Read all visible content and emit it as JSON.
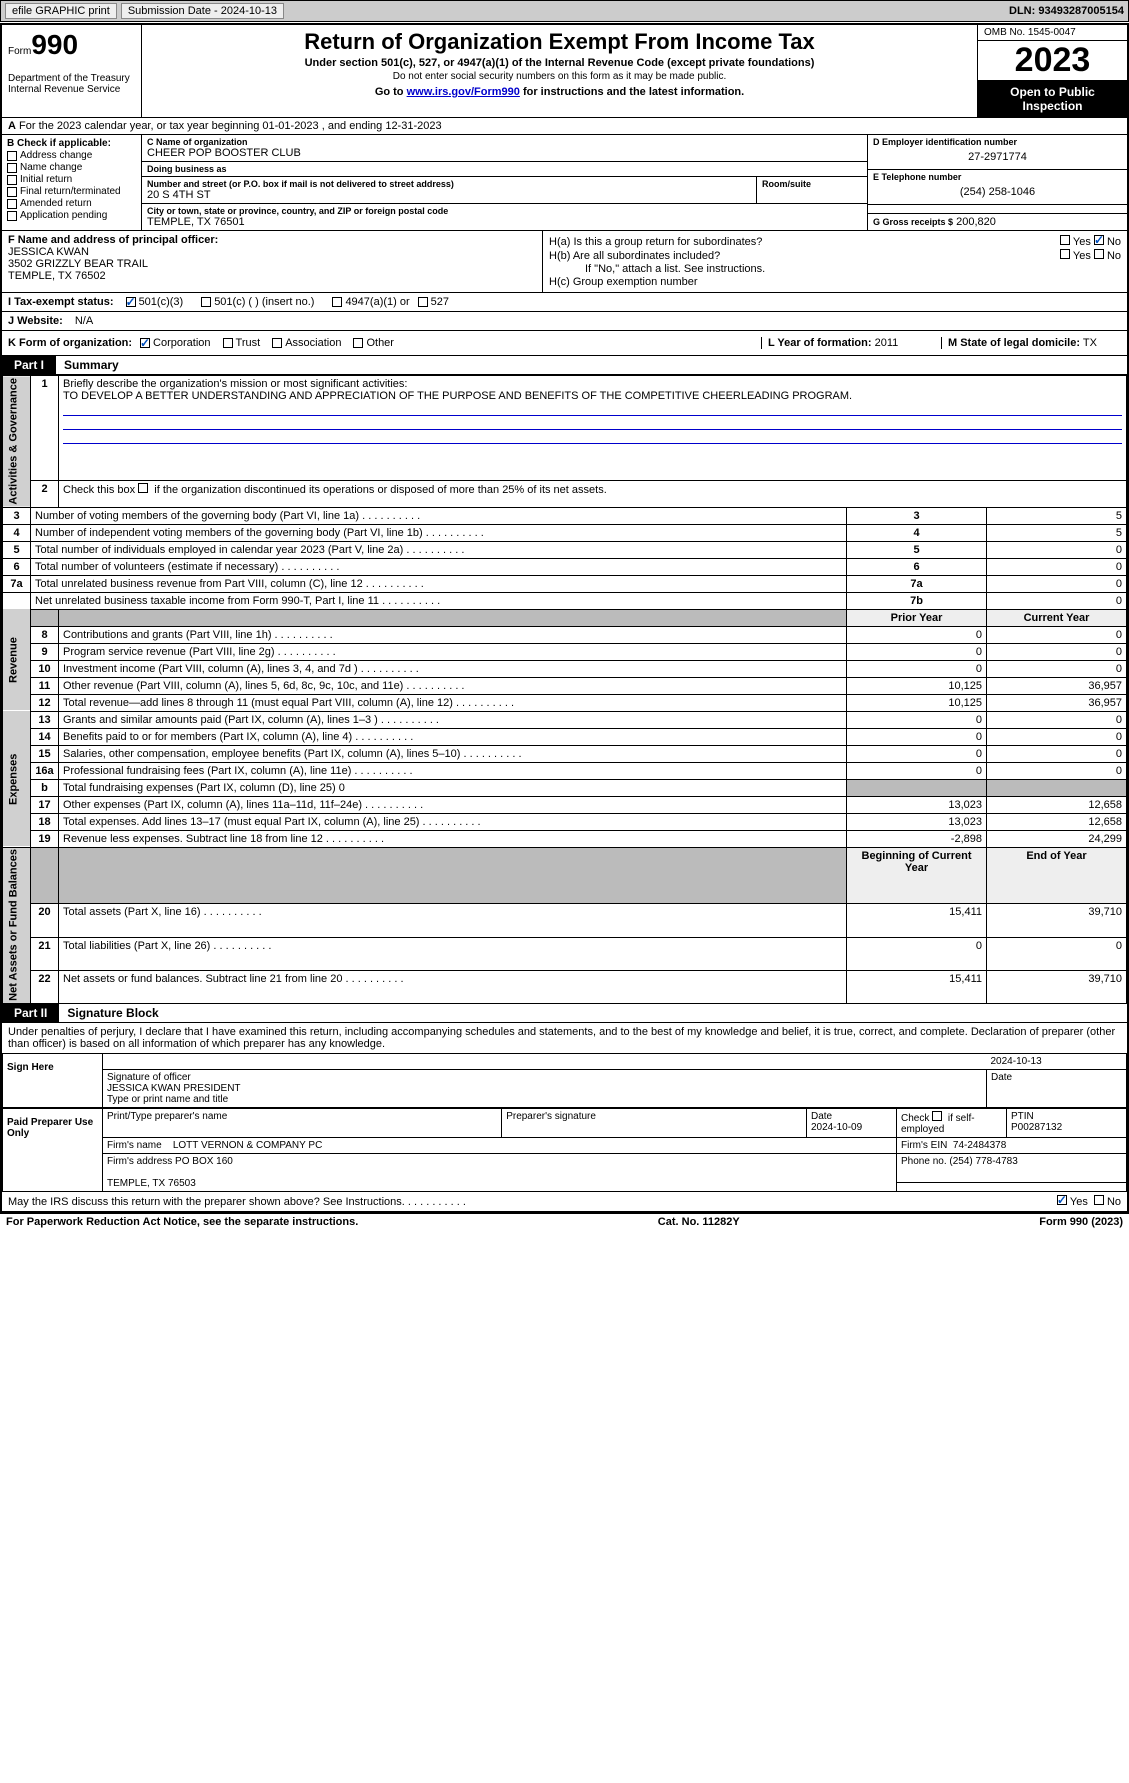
{
  "top": {
    "efile_label": "efile GRAPHIC print",
    "submission": "Submission Date - 2024-10-13",
    "dln": "DLN: 93493287005154"
  },
  "header": {
    "form_prefix": "Form",
    "form_number": "990",
    "dept": "Department of the Treasury\nInternal Revenue Service",
    "title": "Return of Organization Exempt From Income Tax",
    "subtitle": "Under section 501(c), 527, or 4947(a)(1) of the Internal Revenue Code (except private foundations)",
    "note1": "Do not enter social security numbers on this form as it may be made public.",
    "note2_pre": "Go to ",
    "note2_link": "www.irs.gov/Form990",
    "note2_post": " for instructions and the latest information.",
    "omb": "OMB No. 1545-0047",
    "year": "2023",
    "inspect": "Open to Public Inspection"
  },
  "row_a": "For the 2023 calendar year, or tax year beginning 01-01-2023   , and ending 12-31-2023",
  "row_b": {
    "label": "B Check if applicable:",
    "items": [
      "Address change",
      "Name change",
      "Initial return",
      "Final return/terminated",
      "Amended return",
      "Application pending"
    ]
  },
  "c": {
    "name_lbl": "C Name of organization",
    "name": "CHEER POP BOOSTER CLUB",
    "dba_lbl": "Doing business as",
    "dba": "",
    "street_lbl": "Number and street (or P.O. box if mail is not delivered to street address)",
    "street": "20 S 4TH ST",
    "room_lbl": "Room/suite",
    "city_lbl": "City or town, state or province, country, and ZIP or foreign postal code",
    "city": "TEMPLE, TX  76501"
  },
  "d": {
    "lbl": "D Employer identification number",
    "val": "27-2971774"
  },
  "e": {
    "lbl": "E Telephone number",
    "val": "(254) 258-1046"
  },
  "g": {
    "lbl": "G Gross receipts $",
    "val": "200,820"
  },
  "f": {
    "lbl": "F  Name and address of principal officer:",
    "name": "JESSICA KWAN",
    "street": "3502 GRIZZLY BEAR TRAIL",
    "city": "TEMPLE, TX  76502"
  },
  "h": {
    "ha_lbl": "H(a)  Is this a group return for subordinates?",
    "hb_lbl": "H(b)  Are all subordinates included?",
    "hb_note": "If \"No,\" attach a list. See instructions.",
    "hc_lbl": "H(c)  Group exemption number"
  },
  "i": {
    "lbl": "I   Tax-exempt status:",
    "opts": [
      "501(c)(3)",
      "501(c) (  ) (insert no.)",
      "4947(a)(1) or",
      "527"
    ]
  },
  "j": {
    "lbl": "J   Website:",
    "val": "N/A"
  },
  "k": {
    "lbl": "K Form of organization:",
    "opts": [
      "Corporation",
      "Trust",
      "Association",
      "Other"
    ]
  },
  "l": {
    "lbl": "L Year of formation:",
    "val": "2011"
  },
  "m": {
    "lbl": "M State of legal domicile:",
    "val": "TX"
  },
  "parts": {
    "p1_num": "Part I",
    "p1_title": "Summary",
    "p2_num": "Part II",
    "p2_title": "Signature Block"
  },
  "summary": {
    "sections": [
      "Activities & Governance",
      "Revenue",
      "Expenses",
      "Net Assets or Fund Balances"
    ],
    "line1_lbl": "Briefly describe the organization's mission or most significant activities:",
    "line1_val": "TO DEVELOP A BETTER UNDERSTANDING AND APPRECIATION OF THE PURPOSE AND BENEFITS OF THE COMPETITIVE CHEERLEADING PROGRAM.",
    "line2": "Check this box       if the organization discontinued its operations or disposed of more than 25% of its net assets.",
    "rows_ag": [
      {
        "n": "3",
        "t": "Number of voting members of the governing body (Part VI, line 1a)",
        "box": "3",
        "v": "5"
      },
      {
        "n": "4",
        "t": "Number of independent voting members of the governing body (Part VI, line 1b)",
        "box": "4",
        "v": "5"
      },
      {
        "n": "5",
        "t": "Total number of individuals employed in calendar year 2023 (Part V, line 2a)",
        "box": "5",
        "v": "0"
      },
      {
        "n": "6",
        "t": "Total number of volunteers (estimate if necessary)",
        "box": "6",
        "v": "0"
      },
      {
        "n": "7a",
        "t": "Total unrelated business revenue from Part VIII, column (C), line 12",
        "box": "7a",
        "v": "0"
      },
      {
        "n": "",
        "t": "Net unrelated business taxable income from Form 990-T, Part I, line 11",
        "box": "7b",
        "v": "0"
      }
    ],
    "prior_hdr": "Prior Year",
    "curr_hdr": "Current Year",
    "rows_rev": [
      {
        "n": "8",
        "t": "Contributions and grants (Part VIII, line 1h)",
        "p": "0",
        "c": "0"
      },
      {
        "n": "9",
        "t": "Program service revenue (Part VIII, line 2g)",
        "p": "0",
        "c": "0"
      },
      {
        "n": "10",
        "t": "Investment income (Part VIII, column (A), lines 3, 4, and 7d )",
        "p": "0",
        "c": "0"
      },
      {
        "n": "11",
        "t": "Other revenue (Part VIII, column (A), lines 5, 6d, 8c, 9c, 10c, and 11e)",
        "p": "10,125",
        "c": "36,957"
      },
      {
        "n": "12",
        "t": "Total revenue—add lines 8 through 11 (must equal Part VIII, column (A), line 12)",
        "p": "10,125",
        "c": "36,957"
      }
    ],
    "rows_exp": [
      {
        "n": "13",
        "t": "Grants and similar amounts paid (Part IX, column (A), lines 1–3 )",
        "p": "0",
        "c": "0"
      },
      {
        "n": "14",
        "t": "Benefits paid to or for members (Part IX, column (A), line 4)",
        "p": "0",
        "c": "0"
      },
      {
        "n": "15",
        "t": "Salaries, other compensation, employee benefits (Part IX, column (A), lines 5–10)",
        "p": "0",
        "c": "0"
      },
      {
        "n": "16a",
        "t": "Professional fundraising fees (Part IX, column (A), line 11e)",
        "p": "0",
        "c": "0"
      },
      {
        "n": "b",
        "t": "Total fundraising expenses (Part IX, column (D), line 25) 0",
        "p": "",
        "c": "",
        "gray": true
      },
      {
        "n": "17",
        "t": "Other expenses (Part IX, column (A), lines 11a–11d, 11f–24e)",
        "p": "13,023",
        "c": "12,658"
      },
      {
        "n": "18",
        "t": "Total expenses. Add lines 13–17 (must equal Part IX, column (A), line 25)",
        "p": "13,023",
        "c": "12,658"
      },
      {
        "n": "19",
        "t": "Revenue less expenses. Subtract line 18 from line 12",
        "p": "-2,898",
        "c": "24,299"
      }
    ],
    "beg_hdr": "Beginning of Current Year",
    "end_hdr": "End of Year",
    "rows_net": [
      {
        "n": "20",
        "t": "Total assets (Part X, line 16)",
        "p": "15,411",
        "c": "39,710"
      },
      {
        "n": "21",
        "t": "Total liabilities (Part X, line 26)",
        "p": "0",
        "c": "0"
      },
      {
        "n": "22",
        "t": "Net assets or fund balances. Subtract line 21 from line 20",
        "p": "15,411",
        "c": "39,710"
      }
    ]
  },
  "sig": {
    "perjury": "Under penalties of perjury, I declare that I have examined this return, including accompanying schedules and statements, and to the best of my knowledge and belief, it is true, correct, and complete. Declaration of preparer (other than officer) is based on all information of which preparer has any knowledge.",
    "sign_here": "Sign Here",
    "sig_lbl": "Signature of officer",
    "sig_name": "JESSICA KWAN  PRESIDENT",
    "type_lbl": "Type or print name and title",
    "date_lbl": "Date",
    "date_val": "2024-10-13",
    "paid": "Paid Preparer Use Only",
    "prep_name_lbl": "Print/Type preparer's name",
    "prep_sig_lbl": "Preparer's signature",
    "prep_date": "2024-10-09",
    "self_emp": "Check       if self-employed",
    "ptin_lbl": "PTIN",
    "ptin": "P00287132",
    "firm_name_lbl": "Firm's name",
    "firm_name": "LOTT VERNON & COMPANY PC",
    "firm_ein_lbl": "Firm's EIN",
    "firm_ein": "74-2484378",
    "firm_addr_lbl": "Firm's address",
    "firm_addr1": "PO BOX 160",
    "firm_addr2": "TEMPLE, TX  76503",
    "phone_lbl": "Phone no.",
    "phone": "(254) 778-4783",
    "discuss": "May the IRS discuss this return with the preparer shown above? See Instructions."
  },
  "footer": {
    "l": "For Paperwork Reduction Act Notice, see the separate instructions.",
    "c": "Cat. No. 11282Y",
    "r": "Form 990 (2023)"
  },
  "colors": {
    "topbar": "#cccccc",
    "black": "#000000",
    "link": "#0000cc",
    "check": "#0050c0",
    "vert_bg": "#d0d0d0"
  }
}
